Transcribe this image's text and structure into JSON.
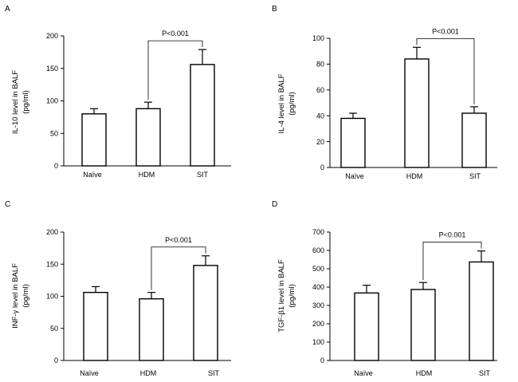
{
  "figure": {
    "colors": {
      "bar_fill": "#ffffff",
      "stroke": "#000000",
      "background": "#ffffff"
    }
  },
  "chart_data": [
    {
      "panel": "A",
      "type": "bar",
      "categories": [
        "Naïve",
        "HDM",
        "SIT"
      ],
      "values": [
        80,
        88,
        156
      ],
      "errors": [
        8,
        10,
        23
      ],
      "ylabel_lines": [
        "IL-10 level in BALF",
        "(pg/ml)"
      ],
      "ylim": [
        0,
        200
      ],
      "yticks": [
        0,
        50,
        100,
        150,
        200
      ],
      "significance": {
        "label": "P<0.001",
        "from": 1,
        "to": 2
      }
    },
    {
      "panel": "B",
      "type": "bar",
      "categories": [
        "Naïve",
        "HDM",
        "SIT"
      ],
      "values": [
        38,
        84,
        42
      ],
      "errors": [
        4,
        9,
        5
      ],
      "ylabel_lines": [
        "IL-4  level in BALF",
        "(pg/ml)"
      ],
      "ylim": [
        0,
        100
      ],
      "yticks": [
        0,
        20,
        40,
        60,
        80,
        100
      ],
      "significance": {
        "label": "P<0.001",
        "from": 1,
        "to": 2
      }
    },
    {
      "panel": "C",
      "type": "bar",
      "categories": [
        "Naïve",
        "HDM",
        "SIT"
      ],
      "values": [
        106,
        96,
        148
      ],
      "errors": [
        9,
        10,
        15
      ],
      "ylabel_lines": [
        "INF-γ  level  in BALF",
        "(pg/ml)"
      ],
      "ylim": [
        0,
        200
      ],
      "yticks": [
        0,
        50,
        100,
        150,
        200
      ],
      "significance": {
        "label": "P<0.001",
        "from": 1,
        "to": 2
      }
    },
    {
      "panel": "D",
      "type": "bar",
      "categories": [
        "Naïve",
        "HDM",
        "SIT"
      ],
      "values": [
        368,
        387,
        537
      ],
      "errors": [
        42,
        38,
        60
      ],
      "ylabel_lines": [
        "TGF-β1  level  in BALF",
        "(pg/ml)"
      ],
      "ylim": [
        0,
        700
      ],
      "yticks": [
        0,
        100,
        200,
        300,
        400,
        500,
        600,
        700
      ],
      "significance": {
        "label": "P<0.001",
        "from": 1,
        "to": 2
      }
    }
  ]
}
